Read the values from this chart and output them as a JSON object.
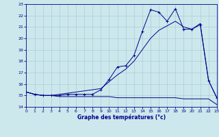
{
  "title": "Graphe des températures (°c)",
  "bg_color": "#cce8ec",
  "line_color": "#00008b",
  "x_values": [
    0,
    1,
    2,
    3,
    4,
    5,
    6,
    7,
    8,
    9,
    10,
    11,
    12,
    13,
    14,
    15,
    16,
    17,
    18,
    19,
    20,
    21,
    22,
    23
  ],
  "line_flat": [
    15.3,
    15.1,
    15.0,
    15.0,
    14.9,
    14.9,
    14.9,
    14.9,
    14.9,
    14.9,
    14.9,
    14.8,
    14.8,
    14.8,
    14.8,
    14.8,
    14.8,
    14.8,
    14.8,
    14.7,
    14.7,
    14.7,
    14.7,
    14.2
  ],
  "line_mid": [
    15.3,
    15.1,
    15.0,
    15.0,
    15.1,
    15.2,
    15.3,
    15.4,
    15.5,
    15.6,
    16.2,
    16.8,
    17.3,
    18.0,
    19.0,
    20.0,
    20.7,
    21.1,
    21.5,
    21.0,
    20.8,
    21.3,
    16.3,
    14.8
  ],
  "line_top": [
    15.3,
    15.1,
    15.0,
    15.0,
    15.0,
    15.1,
    15.1,
    15.1,
    15.1,
    15.5,
    16.4,
    17.5,
    17.6,
    18.5,
    20.6,
    22.5,
    22.3,
    21.5,
    22.6,
    20.8,
    20.8,
    21.2,
    16.3,
    14.8
  ],
  "ylim": [
    14,
    23
  ],
  "xlim": [
    0,
    23
  ],
  "yticks": [
    14,
    15,
    16,
    17,
    18,
    19,
    20,
    21,
    22,
    23
  ],
  "xticks": [
    0,
    1,
    2,
    3,
    4,
    5,
    6,
    7,
    8,
    9,
    10,
    11,
    12,
    13,
    14,
    15,
    16,
    17,
    18,
    19,
    20,
    21,
    22,
    23
  ]
}
